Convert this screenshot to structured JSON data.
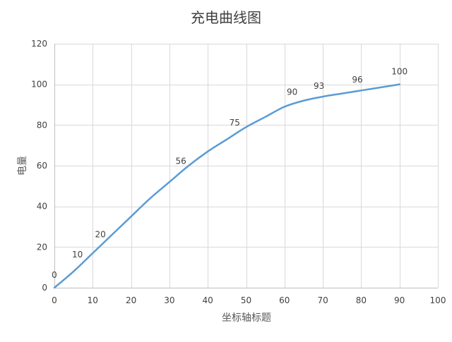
{
  "chart_data": {
    "type": "line",
    "title": "充电曲线图",
    "xlabel": "坐标轴标题",
    "ylabel": "电量",
    "xlim": [
      0,
      100
    ],
    "ylim": [
      0,
      120
    ],
    "xticks": [
      0,
      10,
      20,
      30,
      40,
      50,
      60,
      70,
      80,
      90,
      100
    ],
    "yticks": [
      0,
      20,
      40,
      60,
      80,
      100,
      120
    ],
    "grid": true,
    "legend": "none",
    "colors": {
      "series": "#5b9bd5"
    },
    "series": [
      {
        "x": [
          0,
          5,
          10,
          15,
          20,
          25,
          30,
          35,
          40,
          45,
          50,
          55,
          60,
          65,
          70,
          75,
          80,
          85,
          90
        ],
        "y": [
          0,
          8,
          17,
          26,
          35,
          44,
          52,
          60,
          67,
          73,
          79,
          84,
          89,
          92,
          94,
          95.5,
          97,
          98.5,
          100
        ]
      }
    ],
    "data_labels": [
      {
        "x": 0,
        "y": 0,
        "text": "0"
      },
      {
        "x": 6,
        "y": 10,
        "text": "10"
      },
      {
        "x": 12,
        "y": 20,
        "text": "20"
      },
      {
        "x": 33,
        "y": 56,
        "text": "56"
      },
      {
        "x": 47,
        "y": 75,
        "text": "75"
      },
      {
        "x": 62,
        "y": 90,
        "text": "90"
      },
      {
        "x": 69,
        "y": 93,
        "text": "93"
      },
      {
        "x": 79,
        "y": 96,
        "text": "96"
      },
      {
        "x": 90,
        "y": 100,
        "text": "100"
      }
    ]
  }
}
